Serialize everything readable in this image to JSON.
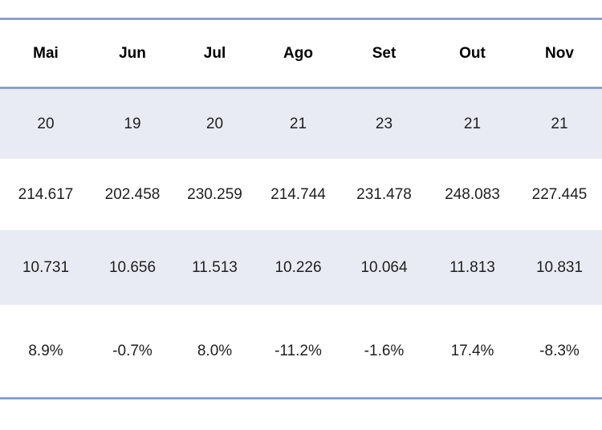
{
  "table": {
    "headers": [
      "Mai",
      "Jun",
      "Jul",
      "Ago",
      "Set",
      "Out",
      "Nov"
    ],
    "rows": [
      [
        "20",
        "19",
        "20",
        "21",
        "23",
        "21",
        "21"
      ],
      [
        "214.617",
        "202.458",
        "230.259",
        "214.744",
        "231.478",
        "248.083",
        "227.445"
      ],
      [
        "10.731",
        "10.656",
        "11.513",
        "10.226",
        "10.064",
        "11.813",
        "10.831"
      ],
      [
        "8.9%",
        "-0.7%",
        "8.0%",
        "-11.2%",
        "-1.6%",
        "17.4%",
        "-8.3%"
      ]
    ]
  },
  "colors": {
    "rule_blue": "#7E96C5",
    "rule_halo": "#B3C2DE",
    "band_lavender": "#E9EBF4",
    "row_white": "#FFFFFF",
    "text": "#1F1F1F",
    "header_text": "#000000"
  },
  "chart_data": {
    "type": "table",
    "categories": [
      "Mai",
      "Jun",
      "Jul",
      "Ago",
      "Set",
      "Out",
      "Nov"
    ],
    "series": [
      {
        "name": "row-1",
        "values": [
          20,
          19,
          20,
          21,
          23,
          21,
          21
        ]
      },
      {
        "name": "row-2",
        "values": [
          214617,
          202458,
          230259,
          214744,
          231478,
          248083,
          227445
        ]
      },
      {
        "name": "row-3",
        "values": [
          10731,
          10656,
          11513,
          10226,
          10064,
          11813,
          10831
        ]
      },
      {
        "name": "row-4-percent",
        "values": [
          8.9,
          -0.7,
          8.0,
          -11.2,
          -1.6,
          17.4,
          -8.3
        ]
      }
    ],
    "title": "",
    "xlabel": "",
    "ylabel": "",
    "notes": "Banded data table, months Mai-Nov (pt), no visible row labels; numbers use dot thousands separator"
  }
}
